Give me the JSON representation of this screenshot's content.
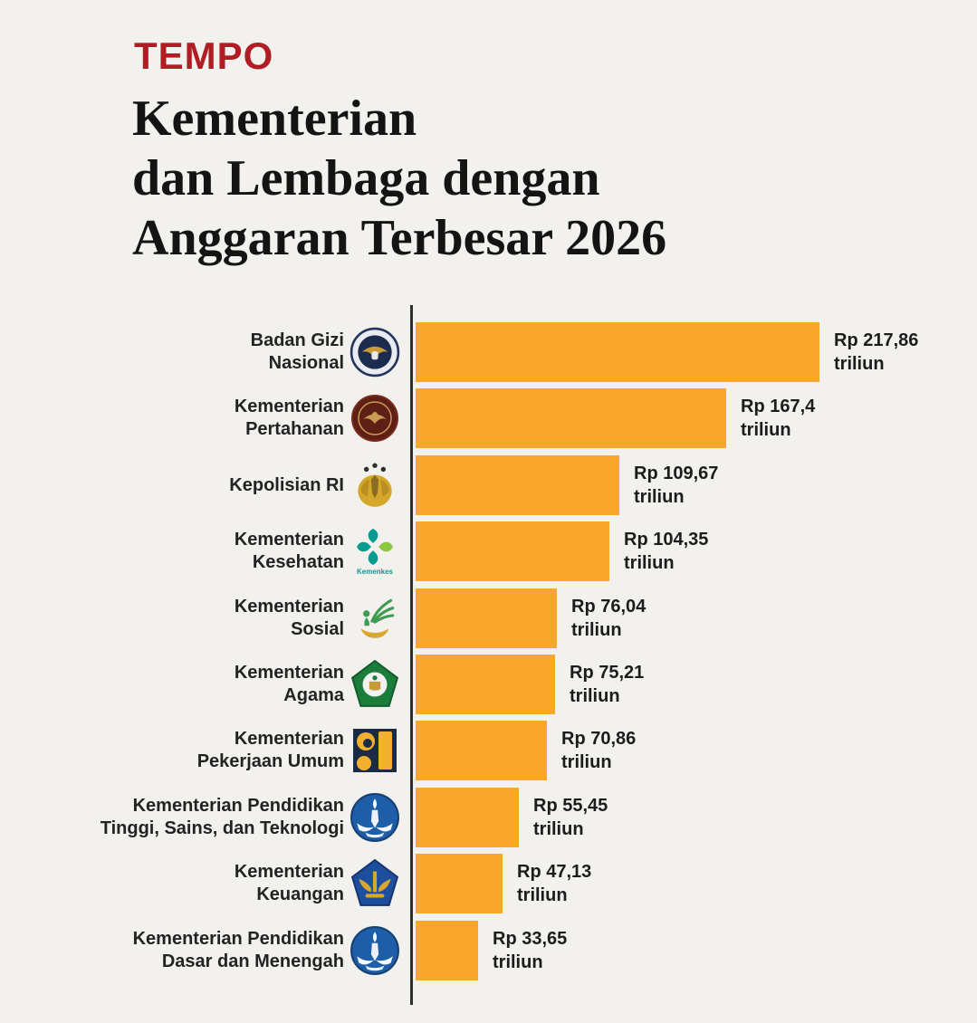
{
  "brand": "TEMPO",
  "title_lines": [
    "Kementerian",
    "dan Lembaga dengan",
    "Anggaran Terbesar 2026"
  ],
  "colors": {
    "background": "#F2F1EE",
    "bar": "#F9A72B",
    "brand_red": "#B01E24",
    "title_text": "#141414",
    "label_text": "#232323",
    "value_text": "#1C1C1C",
    "axis": "#2E2E2E"
  },
  "chart_data": {
    "type": "bar",
    "orientation": "horizontal",
    "title": "Kementerian dan Lembaga dengan Anggaran Terbesar 2026",
    "xlabel": "",
    "ylabel": "",
    "unit": "triliun rupiah",
    "xlim": [
      0,
      225
    ],
    "grid": false,
    "legend": false,
    "categories": [
      "Badan Gizi Nasional",
      "Kementerian Pertahanan",
      "Kepolisian RI",
      "Kementerian Kesehatan",
      "Kementerian Sosial",
      "Kementerian Agama",
      "Kementerian Pekerjaan Umum",
      "Kementerian Pendidikan Tinggi, Sains, dan Teknologi",
      "Kementerian Keuangan",
      "Kementerian Pendidikan Dasar dan Menengah"
    ],
    "category_label_lines": [
      [
        "Badan Gizi",
        "Nasional"
      ],
      [
        "Kementerian",
        "Pertahanan"
      ],
      [
        "Kepolisian RI"
      ],
      [
        "Kementerian",
        "Kesehatan"
      ],
      [
        "Kementerian",
        "Sosial"
      ],
      [
        "Kementerian",
        "Agama"
      ],
      [
        "Kementerian",
        "Pekerjaan Umum"
      ],
      [
        "Kementerian Pendidikan",
        "Tinggi, Sains, dan Teknologi"
      ],
      [
        "Kementerian",
        "Keuangan"
      ],
      [
        "Kementerian Pendidikan",
        "Dasar dan Menengah"
      ]
    ],
    "values": [
      217.86,
      167.4,
      109.67,
      104.35,
      76.04,
      75.21,
      70.86,
      55.45,
      47.13,
      33.65
    ],
    "value_label_lines": [
      [
        "Rp 217,86",
        "triliun"
      ],
      [
        "Rp 167,4",
        "triliun"
      ],
      [
        "Rp 109,67",
        "triliun"
      ],
      [
        "Rp 104,35",
        "triliun"
      ],
      [
        "Rp 76,04",
        "triliun"
      ],
      [
        "Rp 75,21",
        "triliun"
      ],
      [
        "Rp 70,86",
        "triliun"
      ],
      [
        "Rp 55,45",
        "triliun"
      ],
      [
        "Rp 47,13",
        "triliun"
      ],
      [
        "Rp 33,65",
        "triliun"
      ]
    ],
    "logos": [
      "badan-gizi-nasional-logo",
      "kementerian-pertahanan-logo",
      "kepolisian-ri-logo",
      "kementerian-kesehatan-logo",
      "kementerian-sosial-logo",
      "kementerian-agama-logo",
      "kementerian-pekerjaan-umum-logo",
      "kementerian-pendidikan-tinggi-logo",
      "kementerian-keuangan-logo",
      "kementerian-pendidikan-dasar-logo"
    ],
    "logo_captions": [
      "",
      "",
      "",
      "Kemenkes",
      "",
      "",
      "",
      "",
      "",
      ""
    ]
  }
}
